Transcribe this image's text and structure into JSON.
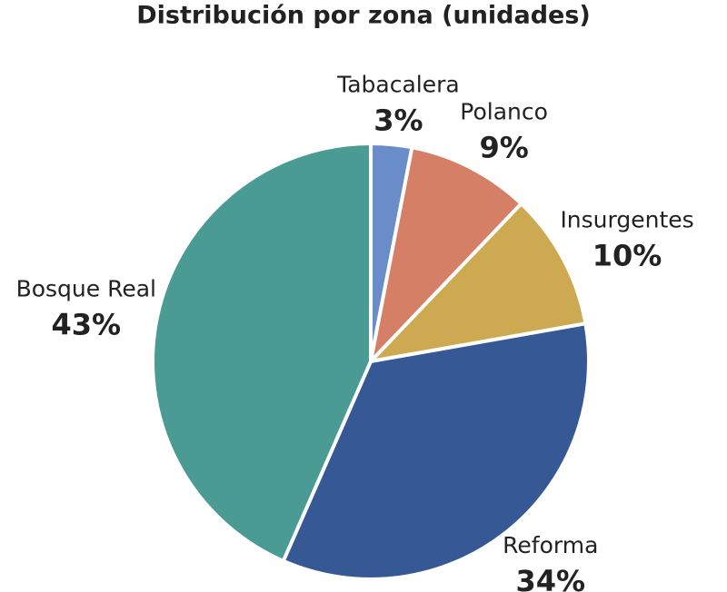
{
  "chart_data": {
    "type": "pie",
    "title": "Distribución por zona (unidades)",
    "categories": [
      "Tabacalera",
      "Polanco",
      "Insurgentes",
      "Reforma",
      "Bosque Real"
    ],
    "values": [
      3,
      9,
      10,
      34,
      43
    ],
    "value_labels": [
      "3%",
      "9%",
      "10%",
      "34%",
      "43%"
    ],
    "colors": [
      "#6a8cc8",
      "#d47f66",
      "#cdaa52",
      "#365894",
      "#4a9b94"
    ]
  }
}
